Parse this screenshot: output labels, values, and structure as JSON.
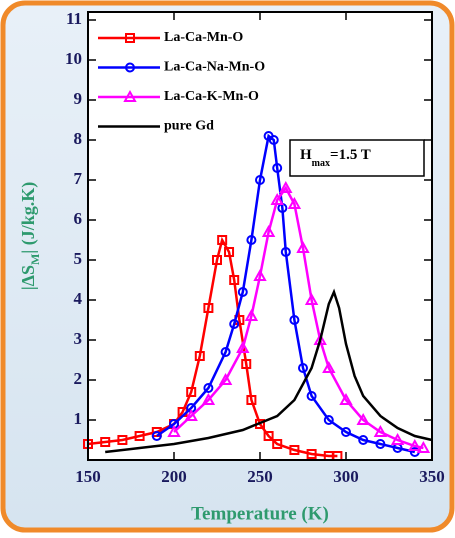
{
  "chart_data": {
    "type": "line",
    "xlabel": "Temperature (K)",
    "ylabel": {
      "prefix": "|ΔS",
      "subscript": "M",
      "suffix": "| (J/kg.K)"
    },
    "annotation": {
      "symbol": "H",
      "subscript": "max",
      "text": "=1.5 T"
    },
    "xlim": [
      150,
      350
    ],
    "xticks": [
      150,
      200,
      250,
      300,
      350
    ],
    "ylim": [
      0,
      11.2
    ],
    "yticks": [
      1,
      2,
      3,
      4,
      5,
      6,
      7,
      8,
      9,
      10,
      11
    ],
    "legend": "upper left",
    "series": [
      {
        "name": "La-Ca-Mn-O",
        "color": "#ff0000",
        "marker": "square",
        "x": [
          150,
          160,
          170,
          180,
          190,
          200,
          205,
          210,
          215,
          220,
          225,
          228,
          232,
          235,
          238,
          242,
          245,
          250,
          255,
          260,
          270,
          280,
          290,
          295
        ],
        "values": [
          0.4,
          0.45,
          0.5,
          0.6,
          0.7,
          0.9,
          1.2,
          1.7,
          2.6,
          3.8,
          5.0,
          5.5,
          5.2,
          4.5,
          3.5,
          2.4,
          1.5,
          0.9,
          0.6,
          0.4,
          0.25,
          0.15,
          0.1,
          0.1
        ]
      },
      {
        "name": "La-Ca-Na-Mn-O",
        "color": "#0000ff",
        "marker": "circle",
        "x": [
          190,
          200,
          210,
          220,
          230,
          235,
          240,
          245,
          250,
          255,
          258,
          260,
          263,
          265,
          270,
          275,
          280,
          290,
          300,
          310,
          320,
          330,
          340
        ],
        "values": [
          0.6,
          0.9,
          1.3,
          1.8,
          2.7,
          3.4,
          4.2,
          5.5,
          7.0,
          8.1,
          8.0,
          7.3,
          6.3,
          5.2,
          3.5,
          2.3,
          1.6,
          1.0,
          0.7,
          0.5,
          0.4,
          0.3,
          0.2
        ]
      },
      {
        "name": "La-Ca-K-Mn-O",
        "color": "#ff00ff",
        "marker": "triangle",
        "x": [
          200,
          210,
          220,
          230,
          240,
          245,
          250,
          255,
          260,
          265,
          270,
          275,
          280,
          285,
          290,
          300,
          310,
          320,
          330,
          340,
          345
        ],
        "values": [
          0.7,
          1.1,
          1.5,
          2.0,
          2.8,
          3.6,
          4.6,
          5.7,
          6.5,
          6.8,
          6.4,
          5.3,
          4.0,
          3.0,
          2.3,
          1.5,
          1.0,
          0.7,
          0.5,
          0.35,
          0.3
        ]
      },
      {
        "name": "pure Gd",
        "color": "#000000",
        "marker": "none",
        "x": [
          160,
          180,
          200,
          220,
          240,
          260,
          270,
          280,
          285,
          290,
          293,
          296,
          300,
          305,
          310,
          320,
          330,
          340,
          350
        ],
        "values": [
          0.2,
          0.3,
          0.4,
          0.55,
          0.75,
          1.1,
          1.5,
          2.3,
          3.0,
          3.9,
          4.2,
          3.8,
          2.9,
          2.1,
          1.6,
          1.1,
          0.8,
          0.6,
          0.5
        ]
      }
    ]
  }
}
